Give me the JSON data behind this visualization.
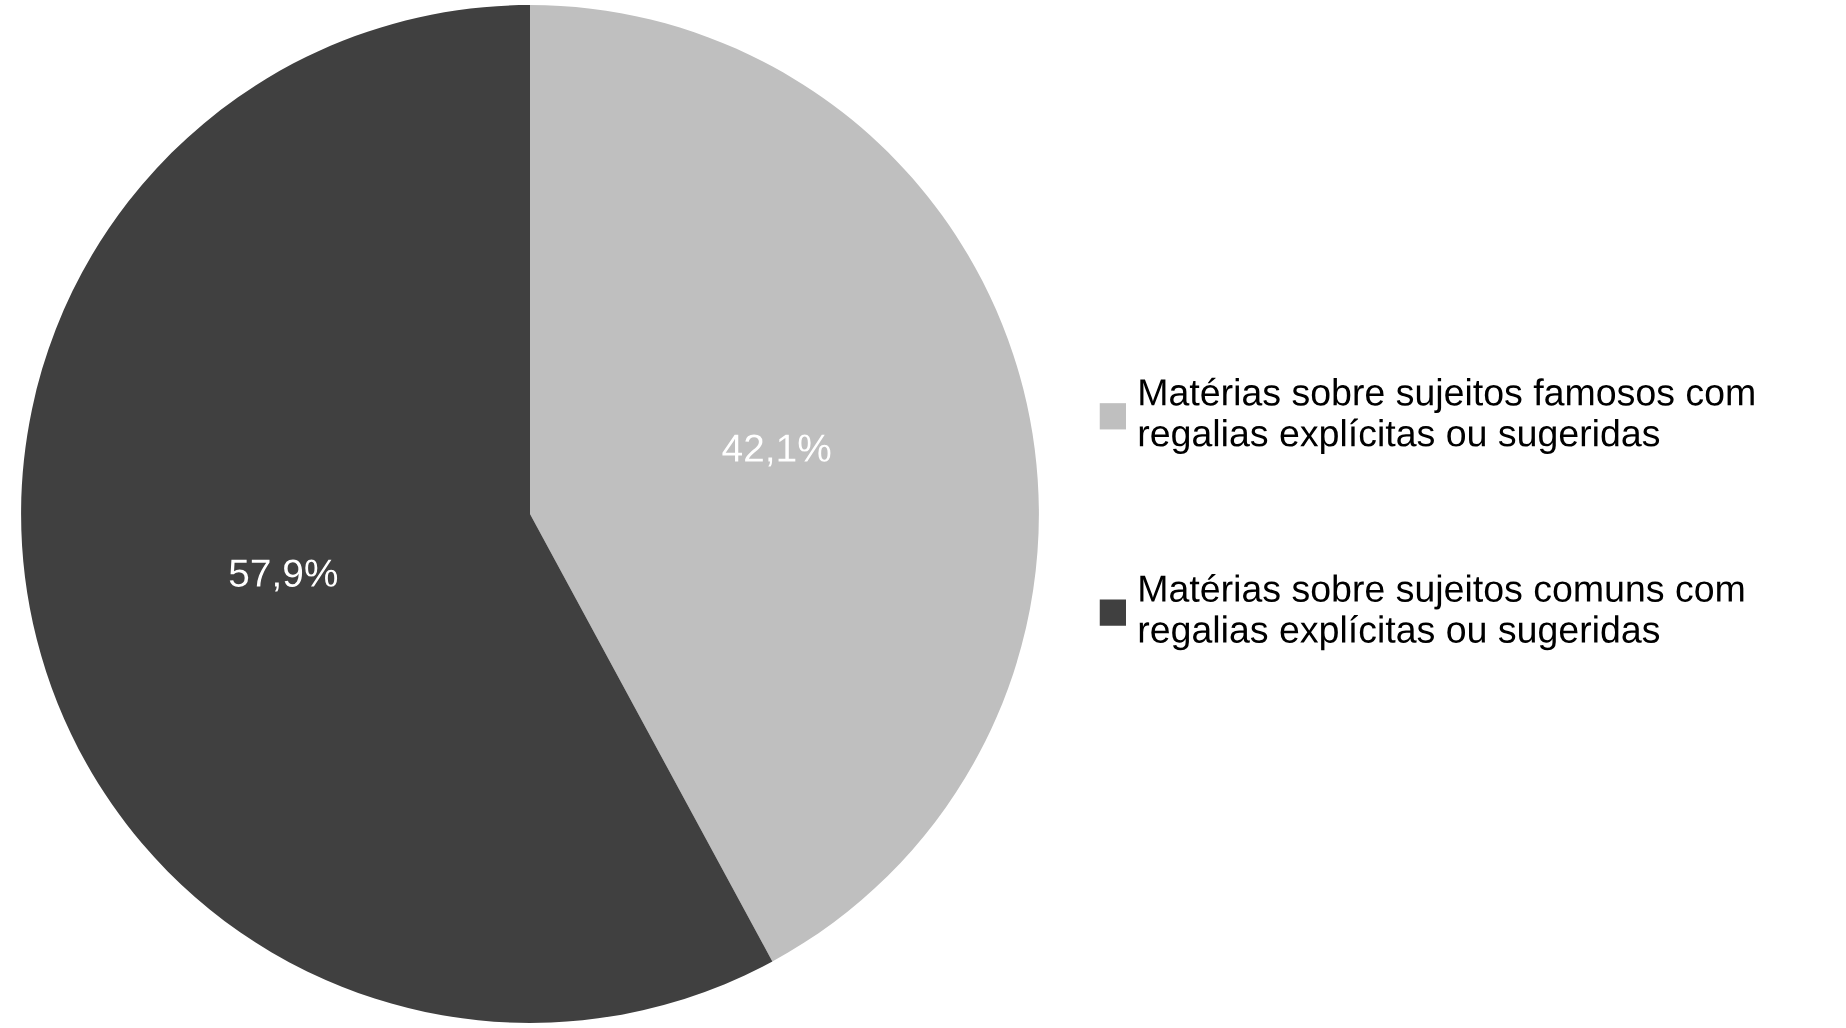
{
  "chart_data": {
    "type": "pie",
    "categories": [
      "Matérias sobre sujeitos famosos com\nregalias explícitas ou sugeridas",
      "Matérias sobre sujeitos comuns com\nregalias explícitas ou sugeridas"
    ],
    "values": [
      42.1,
      57.9
    ],
    "value_labels": [
      "42,1%",
      "57,9%"
    ],
    "colors": [
      "#bfbfbf",
      "#404040"
    ],
    "legend": "right"
  }
}
